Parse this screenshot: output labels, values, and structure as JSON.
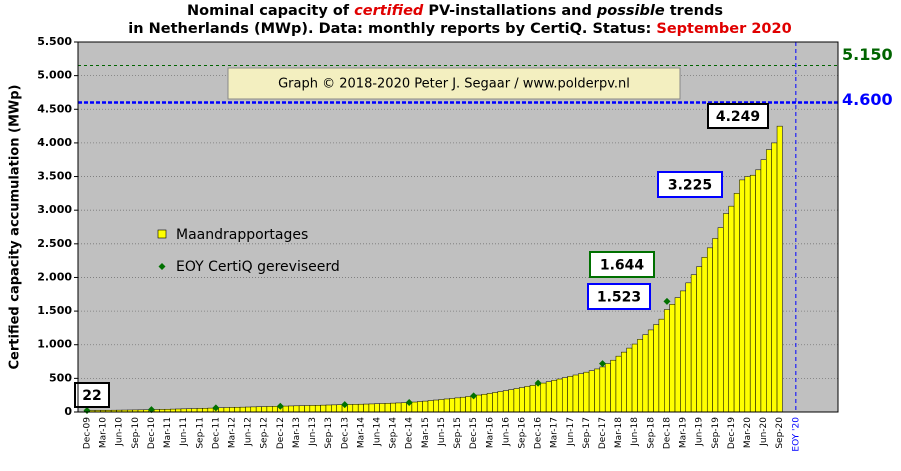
{
  "chart_data": {
    "type": "bar",
    "title": [
      [
        "Nominal capacity of ",
        "certified",
        " PV-installations and ",
        "possible",
        " trends"
      ],
      [
        "in Netherlands (MWp). Data: monthly reports by CertiQ. Status: ",
        "September 2020"
      ]
    ],
    "y_label": "Certified capacity accumulation (MWp)",
    "watermark": "Graph © 2018-2020 Peter J. Segaar / www.polderpv.nl",
    "categories": [
      "Dec-09",
      null,
      null,
      "Mar-10",
      null,
      null,
      "Jun-10",
      null,
      null,
      "Sep-10",
      null,
      null,
      "Dec-10",
      null,
      null,
      "Mar-11",
      null,
      null,
      "Jun-11",
      null,
      null,
      "Sep-11",
      null,
      null,
      "Dec-11",
      null,
      null,
      "Mar-12",
      null,
      null,
      "Jun-12",
      null,
      null,
      "Sep-12",
      null,
      null,
      "Dec-12",
      null,
      null,
      "Mar-13",
      null,
      null,
      "Jun-13",
      null,
      null,
      "Sep-13",
      null,
      null,
      "Dec-13",
      null,
      null,
      "Mar-14",
      null,
      null,
      "Jun-14",
      null,
      null,
      "Sep-14",
      null,
      null,
      "Dec-14",
      null,
      null,
      "Mar-15",
      null,
      null,
      "Jun-15",
      null,
      null,
      "Sep-15",
      null,
      null,
      "Dec-15",
      null,
      null,
      "Mar-16",
      null,
      null,
      "Jun-16",
      null,
      null,
      "Sep-16",
      null,
      null,
      "Dec-16",
      null,
      null,
      "Mar-17",
      null,
      null,
      "Jun-17",
      null,
      null,
      "Sep-17",
      null,
      null,
      "Dec-17",
      null,
      null,
      "Mar-18",
      null,
      null,
      "Jun-18",
      null,
      null,
      "Sep-18",
      null,
      null,
      "Dec-18",
      null,
      null,
      "Mar-19",
      null,
      null,
      "Jun-19",
      null,
      null,
      "Sep-19",
      null,
      null,
      "Dec-19",
      null,
      null,
      "Mar-20",
      null,
      null,
      "Jun-20",
      null,
      null,
      "Sep-20"
    ],
    "series": [
      {
        "name": "Maandrapportages",
        "color": "#ffff00",
        "values": [
          22,
          23,
          24,
          25,
          26,
          27,
          28,
          29,
          30,
          31,
          32,
          33,
          35,
          37,
          39,
          41,
          43,
          45,
          47,
          49,
          51,
          53,
          55,
          58,
          62,
          64,
          66,
          68,
          70,
          72,
          74,
          76,
          78,
          80,
          82,
          84,
          86,
          88,
          90,
          92,
          94,
          96,
          98,
          100,
          102,
          104,
          106,
          108,
          110,
          112,
          114,
          116,
          118,
          120,
          123,
          126,
          129,
          132,
          135,
          138,
          142,
          148,
          155,
          162,
          170,
          178,
          186,
          194,
          202,
          210,
          220,
          230,
          240,
          252,
          264,
          276,
          290,
          304,
          318,
          332,
          348,
          364,
          380,
          396,
          412,
          430,
          450,
          470,
          490,
          510,
          530,
          550,
          570,
          592,
          614,
          640,
          670,
          720,
          770,
          830,
          890,
          950,
          1010,
          1080,
          1150,
          1220,
          1300,
          1380,
          1523,
          1600,
          1700,
          1800,
          1920,
          2040,
          2160,
          2300,
          2440,
          2580,
          2740,
          2950,
          3060,
          3250,
          3450,
          3500,
          3520,
          3600,
          3750,
          3900,
          4000,
          4249
        ]
      },
      {
        "name": "EOY CertiQ gereviseerd",
        "color": "#007000",
        "values": [
          22,
          null,
          null,
          null,
          null,
          null,
          null,
          null,
          null,
          null,
          null,
          null,
          35,
          null,
          null,
          null,
          null,
          null,
          null,
          null,
          null,
          null,
          null,
          null,
          62,
          null,
          null,
          null,
          null,
          null,
          null,
          null,
          null,
          null,
          null,
          null,
          86,
          null,
          null,
          null,
          null,
          null,
          null,
          null,
          null,
          null,
          null,
          null,
          110,
          null,
          null,
          null,
          null,
          null,
          null,
          null,
          null,
          null,
          null,
          null,
          142,
          null,
          null,
          null,
          null,
          null,
          null,
          null,
          null,
          null,
          null,
          null,
          240,
          null,
          null,
          null,
          null,
          null,
          null,
          null,
          null,
          null,
          null,
          null,
          430,
          null,
          null,
          null,
          null,
          null,
          null,
          null,
          null,
          null,
          null,
          null,
          720,
          null,
          null,
          null,
          null,
          null,
          null,
          null,
          null,
          null,
          null,
          null,
          1644,
          null,
          null,
          null,
          null,
          null,
          null,
          null,
          null,
          null,
          null,
          null,
          null,
          null,
          null,
          null,
          null,
          null,
          null,
          null,
          null,
          null
        ]
      }
    ],
    "annotations": [
      {
        "value": 22,
        "label": "22",
        "color": "#000000"
      },
      {
        "value": 1644,
        "label": "1.644",
        "color": "#007000"
      },
      {
        "value": 1523,
        "label": "1.523",
        "color": "#0000ff"
      },
      {
        "value": 3225,
        "label": "3.225",
        "color": "#0000ff"
      },
      {
        "value": 4249,
        "label": "4.249",
        "color": "#000000"
      }
    ],
    "reference_lines": [
      {
        "value": 5150,
        "label": "5.150",
        "color": "#006400"
      },
      {
        "value": 4600,
        "label": "4.600",
        "color": "#0000ff"
      }
    ],
    "x_marker": {
      "label": "EOY '20",
      "color": "#0000ff"
    },
    "ylim": [
      0,
      5500
    ],
    "yticks": [
      0,
      500,
      {
        "value": 1000,
        "label": "1.000"
      },
      {
        "value": 1500,
        "label": "1.500"
      },
      {
        "value": 2000,
        "label": "2.000"
      },
      {
        "value": 2500,
        "label": "2.500"
      },
      {
        "value": 3000,
        "label": "3.000"
      },
      {
        "value": 3500,
        "label": "3.500"
      },
      {
        "value": 4000,
        "label": "4.000"
      },
      {
        "value": 4500,
        "label": "4.500"
      },
      {
        "value": 5000,
        "label": "5.000"
      },
      {
        "value": 5500,
        "label": "5.500"
      }
    ],
    "grid": true,
    "plot_background": "#c0c0c0"
  }
}
